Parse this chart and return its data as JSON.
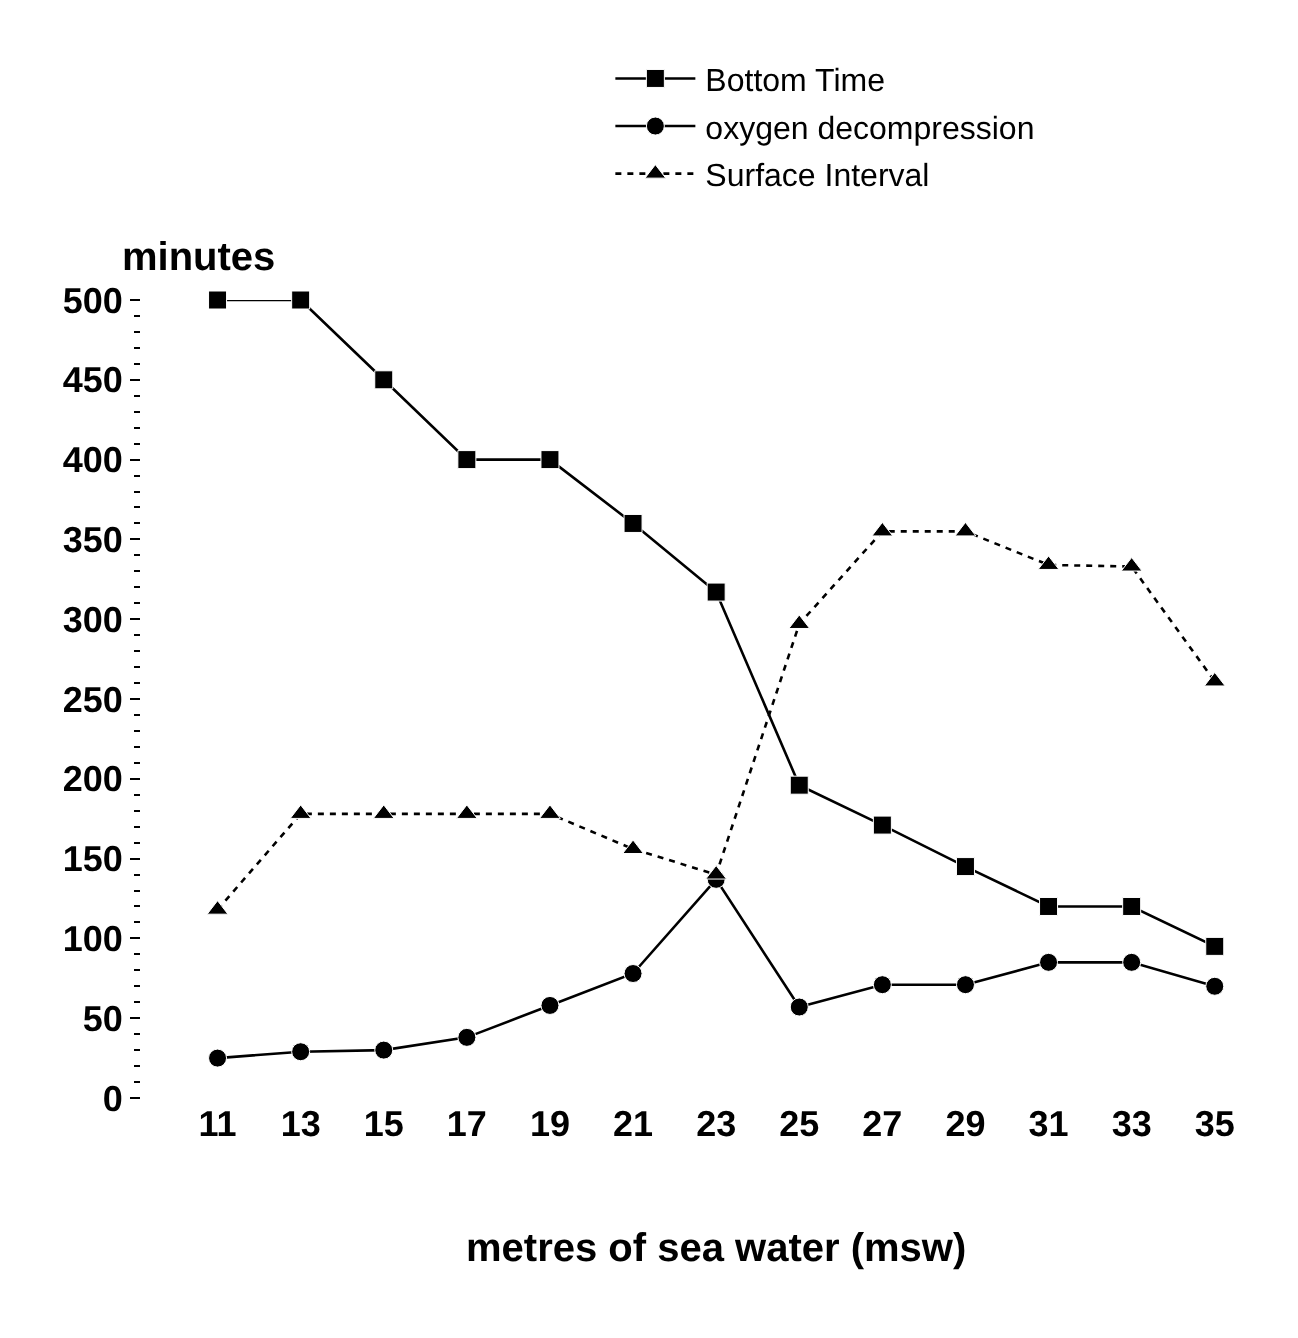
{
  "chart_data": {
    "type": "line",
    "xlabel": "metres of sea water (msw)",
    "ylabel": "minutes",
    "x": [
      11,
      13,
      15,
      17,
      19,
      21,
      23,
      25,
      27,
      29,
      31,
      33,
      35
    ],
    "xlim": [
      11,
      35
    ],
    "xticks": [
      11,
      13,
      15,
      17,
      19,
      21,
      23,
      25,
      27,
      29,
      31,
      33,
      35
    ],
    "ylim": [
      0,
      500
    ],
    "yticks": [
      0,
      50,
      100,
      150,
      200,
      250,
      300,
      350,
      400,
      450,
      500
    ],
    "legend": "top right",
    "series": [
      {
        "name": "Bottom Time",
        "color": "#000000",
        "marker": "square",
        "line_style": "solid",
        "values": [
          500,
          500,
          450,
          400,
          400,
          360,
          317,
          196,
          171,
          145,
          120,
          120,
          95
        ]
      },
      {
        "name": "oxygen decompression",
        "color": "#000000",
        "marker": "circle",
        "line_style": "solid",
        "values": [
          25,
          29,
          30,
          38,
          58,
          78,
          137,
          57,
          71,
          71,
          85,
          85,
          70
        ]
      },
      {
        "name": "Surface Interval",
        "color": "#000000",
        "marker": "triangle",
        "line_style": "dotted",
        "values": [
          118,
          178,
          178,
          178,
          178,
          156,
          140,
          297,
          355,
          355,
          334,
          333,
          261
        ]
      }
    ]
  }
}
